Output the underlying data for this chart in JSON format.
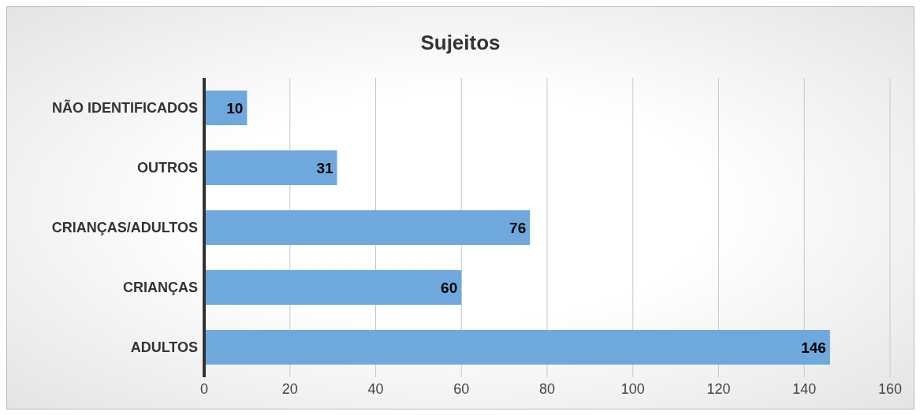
{
  "chart_data": {
    "type": "bar",
    "orientation": "horizontal",
    "title": "Sujeitos",
    "categories": [
      "NÃO IDENTIFICADOS",
      "OUTROS",
      "CRIANÇAS/ADULTOS",
      "CRIANÇAS",
      "ADULTOS"
    ],
    "values": [
      10,
      31,
      76,
      60,
      146
    ],
    "color": "#6fa8dc",
    "xlim": [
      0,
      160
    ],
    "xticks": [
      0,
      20,
      40,
      60,
      80,
      100,
      120,
      140,
      160
    ],
    "grid": "x",
    "data_labels": true
  }
}
